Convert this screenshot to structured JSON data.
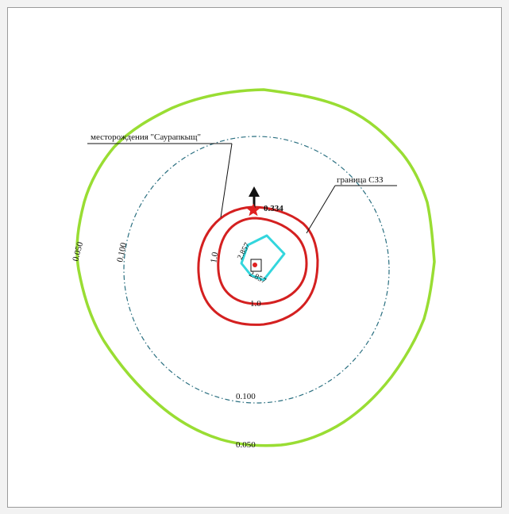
{
  "map": {
    "annotations": {
      "deposit": "месторождения \"Саурапкыщ\"",
      "sanitary_zone": "граница СЗЗ"
    },
    "isolines": {
      "outer": "0.050",
      "outer_bottom": "0.050",
      "dashed_left": "0.100",
      "dashed_bottom": "0.100",
      "red_left": "1.0",
      "red_bottom": "1.0",
      "cyan_top": "2.857",
      "cyan_bottom": "2.857"
    },
    "max_point_value": "0.334",
    "colors": {
      "green_isoline": "#99dd33",
      "dashed_isoline": "#2a6f80",
      "red_isoline": "#d42020",
      "cyan_isoline": "#33d6dd",
      "north_arrow": "#111111",
      "star": "#e02020"
    },
    "icons": {
      "north": "north-arrow-icon",
      "max_point": "star-icon",
      "source": "source-square-icon"
    }
  }
}
